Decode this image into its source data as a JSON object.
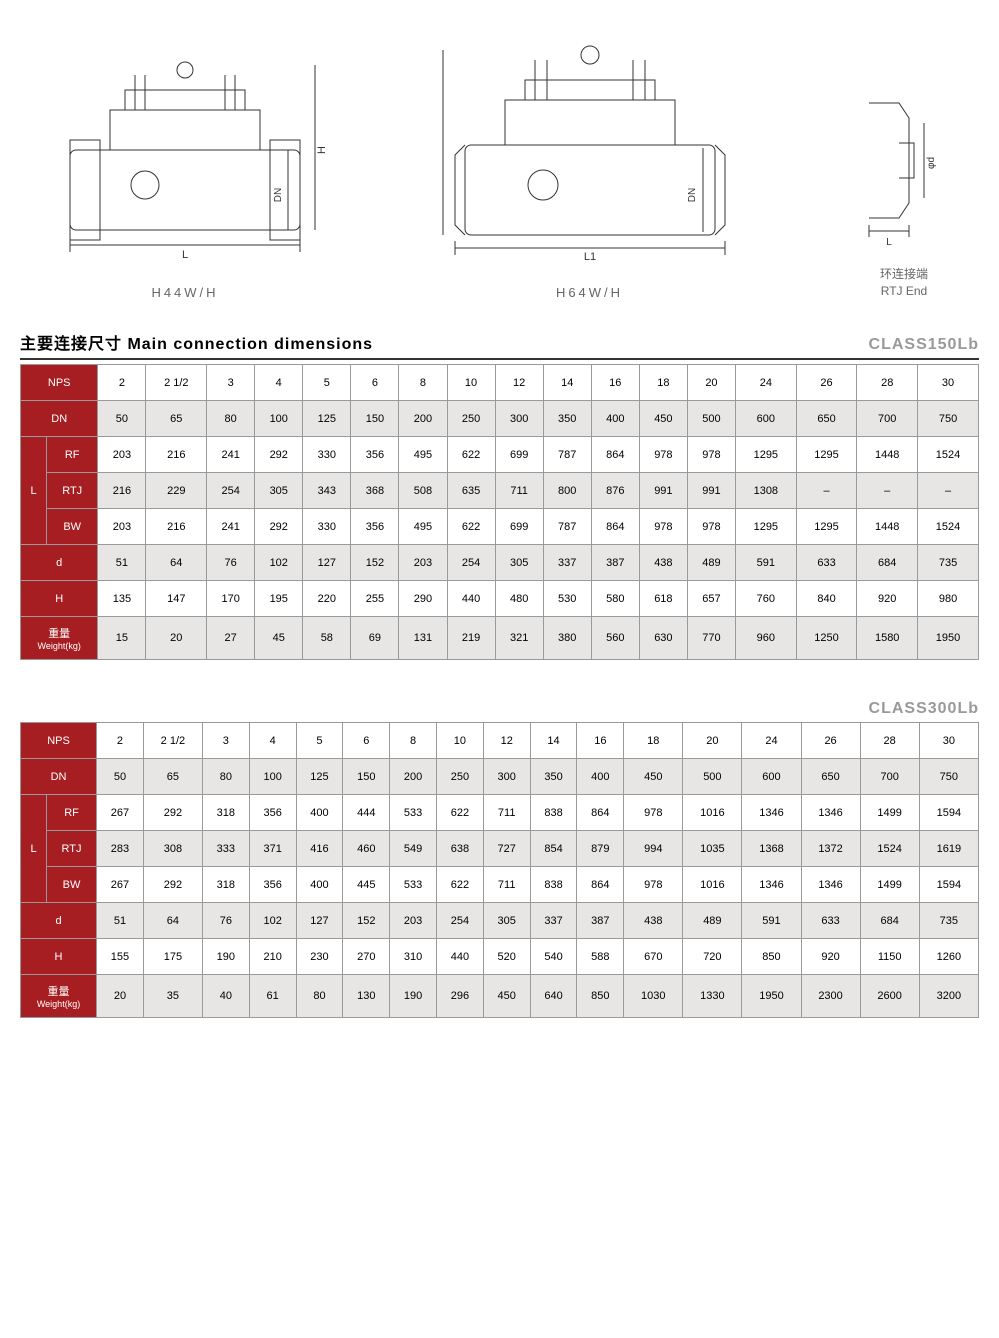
{
  "diagrams": {
    "label1": "H44W/H",
    "label2": "H64W/H",
    "rtj_cn": "环连接端",
    "rtj_en": "RTJ End",
    "dim_L": "L",
    "dim_L1": "L1",
    "dim_H": "H",
    "dim_DN": "DN",
    "dim_d": "φd"
  },
  "section_title": "主要连接尺寸 Main connection dimensions",
  "class150": "CLASS150Lb",
  "class300": "CLASS300Lb",
  "headers": {
    "NPS": "NPS",
    "DN": "DN",
    "L": "L",
    "RF": "RF",
    "RTJ": "RTJ",
    "BW": "BW",
    "d": "d",
    "H": "H",
    "weight_cn": "重量",
    "weight_en": "Weight(kg)"
  },
  "colors": {
    "header_bg": "#a61e22",
    "header_text": "#ffffff",
    "row_odd": "#e8e6e4",
    "row_even": "#ffffff",
    "border": "#999999",
    "class_text": "#999999"
  },
  "t150": {
    "NPS": [
      "2",
      "2 1/2",
      "3",
      "4",
      "5",
      "6",
      "8",
      "10",
      "12",
      "14",
      "16",
      "18",
      "20",
      "24",
      "26",
      "28",
      "30"
    ],
    "DN": [
      "50",
      "65",
      "80",
      "100",
      "125",
      "150",
      "200",
      "250",
      "300",
      "350",
      "400",
      "450",
      "500",
      "600",
      "650",
      "700",
      "750"
    ],
    "RF": [
      "203",
      "216",
      "241",
      "292",
      "330",
      "356",
      "495",
      "622",
      "699",
      "787",
      "864",
      "978",
      "978",
      "1295",
      "1295",
      "1448",
      "1524"
    ],
    "RTJ": [
      "216",
      "229",
      "254",
      "305",
      "343",
      "368",
      "508",
      "635",
      "711",
      "800",
      "876",
      "991",
      "991",
      "1308",
      "–",
      "–",
      "–"
    ],
    "BW": [
      "203",
      "216",
      "241",
      "292",
      "330",
      "356",
      "495",
      "622",
      "699",
      "787",
      "864",
      "978",
      "978",
      "1295",
      "1295",
      "1448",
      "1524"
    ],
    "d": [
      "51",
      "64",
      "76",
      "102",
      "127",
      "152",
      "203",
      "254",
      "305",
      "337",
      "387",
      "438",
      "489",
      "591",
      "633",
      "684",
      "735"
    ],
    "H": [
      "135",
      "147",
      "170",
      "195",
      "220",
      "255",
      "290",
      "440",
      "480",
      "530",
      "580",
      "618",
      "657",
      "760",
      "840",
      "920",
      "980"
    ],
    "W": [
      "15",
      "20",
      "27",
      "45",
      "58",
      "69",
      "131",
      "219",
      "321",
      "380",
      "560",
      "630",
      "770",
      "960",
      "1250",
      "1580",
      "1950"
    ]
  },
  "t300": {
    "NPS": [
      "2",
      "2 1/2",
      "3",
      "4",
      "5",
      "6",
      "8",
      "10",
      "12",
      "14",
      "16",
      "18",
      "20",
      "24",
      "26",
      "28",
      "30"
    ],
    "DN": [
      "50",
      "65",
      "80",
      "100",
      "125",
      "150",
      "200",
      "250",
      "300",
      "350",
      "400",
      "450",
      "500",
      "600",
      "650",
      "700",
      "750"
    ],
    "RF": [
      "267",
      "292",
      "318",
      "356",
      "400",
      "444",
      "533",
      "622",
      "711",
      "838",
      "864",
      "978",
      "1016",
      "1346",
      "1346",
      "1499",
      "1594"
    ],
    "RTJ": [
      "283",
      "308",
      "333",
      "371",
      "416",
      "460",
      "549",
      "638",
      "727",
      "854",
      "879",
      "994",
      "1035",
      "1368",
      "1372",
      "1524",
      "1619"
    ],
    "BW": [
      "267",
      "292",
      "318",
      "356",
      "400",
      "445",
      "533",
      "622",
      "711",
      "838",
      "864",
      "978",
      "1016",
      "1346",
      "1346",
      "1499",
      "1594"
    ],
    "d": [
      "51",
      "64",
      "76",
      "102",
      "127",
      "152",
      "203",
      "254",
      "305",
      "337",
      "387",
      "438",
      "489",
      "591",
      "633",
      "684",
      "735"
    ],
    "H": [
      "155",
      "175",
      "190",
      "210",
      "230",
      "270",
      "310",
      "440",
      "520",
      "540",
      "588",
      "670",
      "720",
      "850",
      "920",
      "1150",
      "1260"
    ],
    "W": [
      "20",
      "35",
      "40",
      "61",
      "80",
      "130",
      "190",
      "296",
      "450",
      "640",
      "850",
      "1030",
      "1330",
      "1950",
      "2300",
      "2600",
      "3200"
    ]
  }
}
